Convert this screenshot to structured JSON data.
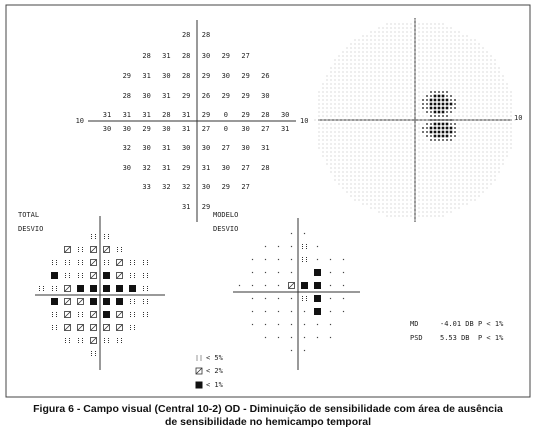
{
  "threshold": {
    "rows": [
      [
        28,
        28
      ],
      [
        28,
        31,
        28,
        30,
        29,
        27
      ],
      [
        29,
        31,
        30,
        28,
        29,
        30,
        29,
        26
      ],
      [
        28,
        30,
        31,
        29,
        26,
        29,
        29,
        30
      ],
      [
        31,
        31,
        31,
        28,
        31,
        29,
        0,
        29,
        28,
        30
      ],
      [
        30,
        30,
        29,
        30,
        31,
        27,
        0,
        30,
        27,
        31
      ],
      [
        32,
        30,
        31,
        30,
        30,
        27,
        30,
        31
      ],
      [
        30,
        32,
        31,
        29,
        31,
        30,
        27,
        28
      ],
      [
        33,
        32,
        32,
        30,
        29,
        27
      ],
      [
        31,
        29
      ]
    ],
    "axis_left": "10",
    "axis_right": "10"
  },
  "grayscale": {
    "axis_label": "10"
  },
  "total_deviation": {
    "label": [
      "TOTAL",
      "DESVIO"
    ]
  },
  "pattern_deviation": {
    "label": [
      "MODELO",
      "DESVIO"
    ]
  },
  "legend": [
    "< 5%",
    "< 2%",
    "< 1%"
  ],
  "indices": [
    {
      "name": "MD",
      "value": "-4.01 DB",
      "p": "P < 1%"
    },
    {
      "name": "PSD",
      "value": "5.53 DB",
      "p": "P < 1%"
    }
  ],
  "caption": [
    "Figura 6 - Campo visual (Central 10-2) OD - Diminuição de sensibilidade com área de ausência",
    "de sensibilidade no hemicampo temporal"
  ]
}
